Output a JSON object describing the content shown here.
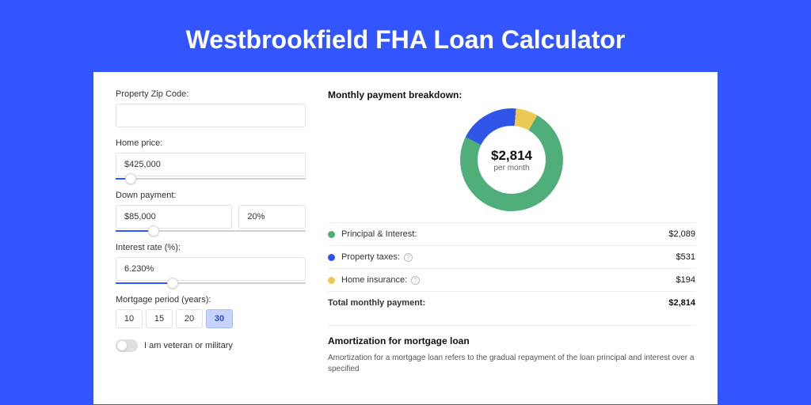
{
  "page": {
    "title": "Westbrookfield FHA Loan Calculator",
    "background_color": "#3355ff",
    "card_background": "#ffffff"
  },
  "form": {
    "zip": {
      "label": "Property Zip Code:",
      "value": ""
    },
    "home_price": {
      "label": "Home price:",
      "value": "$425,000",
      "slider_pct": 8
    },
    "down_payment": {
      "label": "Down payment:",
      "amount": "$85,000",
      "percent": "20%",
      "slider_pct": 20
    },
    "interest_rate": {
      "label": "Interest rate (%):",
      "value": "6.230%",
      "slider_pct": 30
    },
    "mortgage_period": {
      "label": "Mortgage period (years):",
      "options": [
        "10",
        "15",
        "20",
        "30"
      ],
      "selected": "30"
    },
    "veteran": {
      "label": "I am veteran or military",
      "on": false
    }
  },
  "breakdown": {
    "title": "Monthly payment breakdown:",
    "donut": {
      "amount": "$2,814",
      "sub": "per month",
      "segments": [
        {
          "label": "Principal & Interest",
          "value": "$2,089",
          "pct": 74,
          "color": "#4fae7a"
        },
        {
          "label": "Property taxes",
          "value": "$531",
          "pct": 19,
          "color": "#2f55e8"
        },
        {
          "label": "Home insurance",
          "value": "$194",
          "pct": 7,
          "color": "#eac955"
        }
      ]
    },
    "rows": [
      {
        "dot": "#4fae7a",
        "label": "Principal & Interest:",
        "info": false,
        "value": "$2,089"
      },
      {
        "dot": "#2f55e8",
        "label": "Property taxes:",
        "info": true,
        "value": "$531"
      },
      {
        "dot": "#eac955",
        "label": "Home insurance:",
        "info": true,
        "value": "$194"
      }
    ],
    "total": {
      "label": "Total monthly payment:",
      "value": "$2,814"
    }
  },
  "amortization": {
    "title": "Amortization for mortgage loan",
    "text": "Amortization for a mortgage loan refers to the gradual repayment of the loan principal and interest over a specified"
  }
}
